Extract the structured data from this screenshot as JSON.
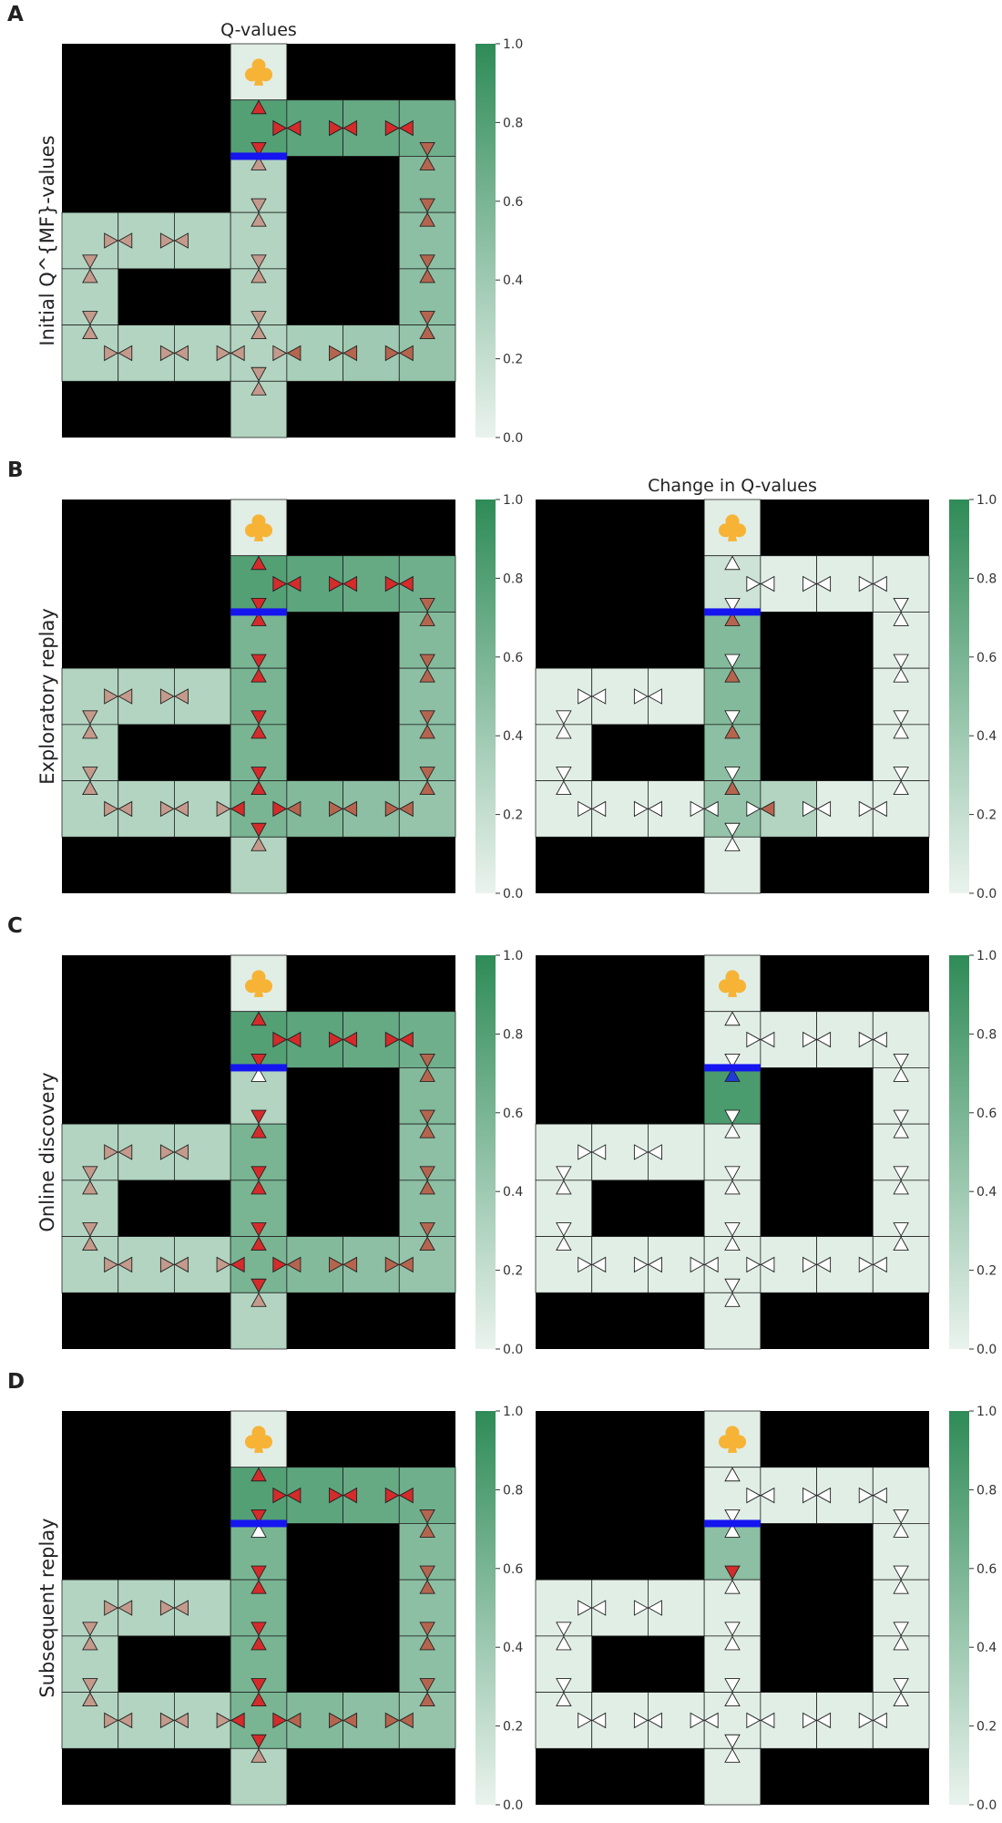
{
  "figure": {
    "column_titles": [
      "Q-values",
      "Change in Q-values"
    ],
    "goal_icon": "club-icon",
    "rows": [
      {
        "letter": "A",
        "label": "Initial Q^{MF}-values",
        "panels": [
          "q"
        ]
      },
      {
        "letter": "B",
        "label": "Exploratory replay",
        "panels": [
          "q",
          "dq"
        ]
      },
      {
        "letter": "C",
        "label": "Online discovery",
        "panels": [
          "q",
          "dq"
        ]
      },
      {
        "letter": "D",
        "label": "Subsequent replay",
        "panels": [
          "q",
          "dq"
        ]
      }
    ]
  },
  "chart_data": [
    {
      "type": "heatmap",
      "panel": "A",
      "title": "Q-values",
      "ylabel": "Initial Q^{MF}-values",
      "colorbar": {
        "range": [
          0,
          1
        ],
        "ticks": [
          "0.0",
          "0.2",
          "0.4",
          "0.6",
          "0.8",
          "1.0"
        ]
      },
      "colormap": [
        "#eaf3ee",
        "#2e8b57"
      ],
      "wall_color": "#000000",
      "barrier": "blue bar between top-middle and middle column corridor",
      "values": [
        [
          null,
          null,
          null,
          0.05,
          null,
          null,
          null
        ],
        [
          null,
          null,
          null,
          0.8,
          0.75,
          0.7,
          0.65
        ],
        [
          null,
          null,
          null,
          0.3,
          null,
          null,
          0.55
        ],
        [
          0.3,
          0.3,
          0.3,
          0.3,
          null,
          null,
          0.5
        ],
        [
          0.3,
          null,
          null,
          0.3,
          null,
          null,
          0.5
        ],
        [
          0.3,
          0.3,
          0.3,
          0.3,
          0.35,
          0.4,
          0.45
        ],
        [
          null,
          null,
          null,
          0.3,
          null,
          null,
          null
        ]
      ]
    },
    {
      "type": "heatmap",
      "panel": "B-left",
      "ylabel": "Exploratory replay",
      "colorbar": {
        "range": [
          0,
          1
        ],
        "ticks": [
          "0.0",
          "0.2",
          "0.4",
          "0.6",
          "0.8",
          "1.0"
        ]
      },
      "colormap": [
        "#eaf3ee",
        "#2e8b57"
      ],
      "values": [
        [
          null,
          null,
          null,
          0.05,
          null,
          null,
          null
        ],
        [
          null,
          null,
          null,
          0.8,
          0.75,
          0.7,
          0.65
        ],
        [
          null,
          null,
          null,
          0.6,
          null,
          null,
          0.55
        ],
        [
          0.3,
          0.3,
          0.3,
          0.6,
          null,
          null,
          0.5
        ],
        [
          0.3,
          null,
          null,
          0.6,
          null,
          null,
          0.5
        ],
        [
          0.3,
          0.3,
          0.3,
          0.6,
          0.55,
          0.5,
          0.45
        ],
        [
          null,
          null,
          null,
          0.3,
          null,
          null,
          null
        ]
      ]
    },
    {
      "type": "heatmap",
      "panel": "B-right",
      "title": "Change in Q-values",
      "colorbar": {
        "range": [
          0,
          1
        ],
        "ticks": [
          "0.0",
          "0.2",
          "0.4",
          "0.6",
          "0.8",
          "1.0"
        ]
      },
      "colormap": [
        "#eaf3ee",
        "#2e8b57"
      ],
      "values": [
        [
          null,
          null,
          null,
          0.05,
          null,
          null,
          null
        ],
        [
          null,
          null,
          null,
          0.15,
          0.05,
          0.05,
          0.05
        ],
        [
          null,
          null,
          null,
          0.55,
          null,
          null,
          0.05
        ],
        [
          0.05,
          0.05,
          0.05,
          0.55,
          null,
          null,
          0.05
        ],
        [
          0.05,
          null,
          null,
          0.5,
          null,
          null,
          0.05
        ],
        [
          0.05,
          0.05,
          0.05,
          0.45,
          0.3,
          0.05,
          0.05
        ],
        [
          null,
          null,
          null,
          0.05,
          null,
          null,
          null
        ]
      ]
    },
    {
      "type": "heatmap",
      "panel": "C-left",
      "ylabel": "Online discovery",
      "colorbar": {
        "range": [
          0,
          1
        ],
        "ticks": [
          "0.0",
          "0.2",
          "0.4",
          "0.6",
          "0.8",
          "1.0"
        ]
      },
      "colormap": [
        "#eaf3ee",
        "#2e8b57"
      ],
      "values": [
        [
          null,
          null,
          null,
          0.05,
          null,
          null,
          null
        ],
        [
          null,
          null,
          null,
          0.8,
          0.75,
          0.7,
          0.65
        ],
        [
          null,
          null,
          null,
          0.3,
          null,
          null,
          0.55
        ],
        [
          0.3,
          0.3,
          0.3,
          0.6,
          null,
          null,
          0.5
        ],
        [
          0.3,
          null,
          null,
          0.6,
          null,
          null,
          0.5
        ],
        [
          0.3,
          0.3,
          0.3,
          0.6,
          0.55,
          0.5,
          0.45
        ],
        [
          null,
          null,
          null,
          0.3,
          null,
          null,
          null
        ]
      ]
    },
    {
      "type": "heatmap",
      "panel": "C-right",
      "colorbar": {
        "range": [
          0,
          1
        ],
        "ticks": [
          "0.0",
          "0.2",
          "0.4",
          "0.6",
          "0.8",
          "1.0"
        ]
      },
      "colormap": [
        "#eaf3ee",
        "#2e8b57"
      ],
      "values": [
        [
          null,
          null,
          null,
          0.05,
          null,
          null,
          null
        ],
        [
          null,
          null,
          null,
          0.05,
          0.05,
          0.05,
          0.05
        ],
        [
          null,
          null,
          null,
          0.85,
          null,
          null,
          0.05
        ],
        [
          0.05,
          0.05,
          0.05,
          0.05,
          null,
          null,
          0.05
        ],
        [
          0.05,
          null,
          null,
          0.05,
          null,
          null,
          0.05
        ],
        [
          0.05,
          0.05,
          0.05,
          0.05,
          0.05,
          0.05,
          0.05
        ],
        [
          null,
          null,
          null,
          0.05,
          null,
          null,
          null
        ]
      ]
    },
    {
      "type": "heatmap",
      "panel": "D-left",
      "ylabel": "Subsequent replay",
      "colorbar": {
        "range": [
          0,
          1
        ],
        "ticks": [
          "0.0",
          "0.2",
          "0.4",
          "0.6",
          "0.8",
          "1.0"
        ]
      },
      "colormap": [
        "#eaf3ee",
        "#2e8b57"
      ],
      "values": [
        [
          null,
          null,
          null,
          0.05,
          null,
          null,
          null
        ],
        [
          null,
          null,
          null,
          0.8,
          0.75,
          0.7,
          0.65
        ],
        [
          null,
          null,
          null,
          0.6,
          null,
          null,
          0.55
        ],
        [
          0.3,
          0.3,
          0.3,
          0.6,
          null,
          null,
          0.5
        ],
        [
          0.3,
          null,
          null,
          0.6,
          null,
          null,
          0.5
        ],
        [
          0.3,
          0.3,
          0.3,
          0.6,
          0.55,
          0.5,
          0.45
        ],
        [
          null,
          null,
          null,
          0.3,
          null,
          null,
          null
        ]
      ]
    },
    {
      "type": "heatmap",
      "panel": "D-right",
      "colorbar": {
        "range": [
          0,
          1
        ],
        "ticks": [
          "0.0",
          "0.2",
          "0.4",
          "0.6",
          "0.8",
          "1.0"
        ]
      },
      "colormap": [
        "#eaf3ee",
        "#2e8b57"
      ],
      "values": [
        [
          null,
          null,
          null,
          0.05,
          null,
          null,
          null
        ],
        [
          null,
          null,
          null,
          0.05,
          0.05,
          0.05,
          0.05
        ],
        [
          null,
          null,
          null,
          0.5,
          null,
          null,
          0.05
        ],
        [
          0.05,
          0.05,
          0.05,
          0.05,
          null,
          null,
          0.05
        ],
        [
          0.05,
          null,
          null,
          0.05,
          null,
          null,
          0.05
        ],
        [
          0.05,
          0.05,
          0.05,
          0.05,
          0.05,
          0.05,
          0.05
        ],
        [
          null,
          null,
          null,
          0.05,
          null,
          null,
          null
        ]
      ]
    }
  ]
}
